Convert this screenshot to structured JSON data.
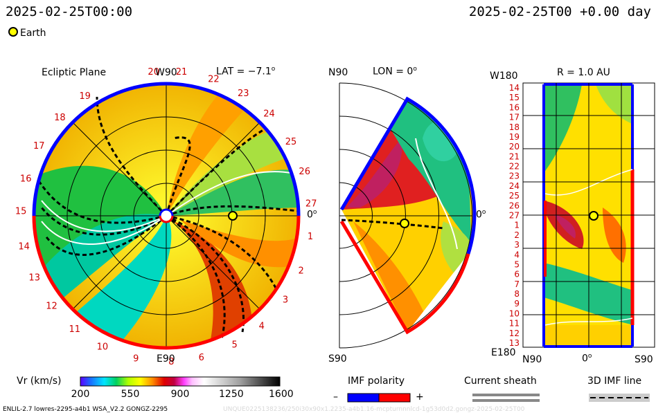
{
  "header": {
    "timestamp": "2025-02-25T00:00",
    "right_time": "2025-02-25T00 +0.00 day",
    "earth_legend": "Earth"
  },
  "panels": {
    "ecliptic": {
      "title": "Ecliptic Plane",
      "top_label": "W90",
      "bottom_label": "E90",
      "right_label": "0",
      "right_label_sup": "o",
      "lat_label": "LAT = −7.1",
      "lat_sup": "o",
      "carrington_numbers": [
        "20",
        "21",
        "22",
        "23",
        "24",
        "25",
        "26",
        "27",
        "1",
        "2",
        "3",
        "4",
        "5",
        "6",
        "8",
        "9",
        "10",
        "11",
        "12",
        "13",
        "14",
        "15",
        "16",
        "17",
        "18",
        "19"
      ]
    },
    "meridional": {
      "top_label": "N90",
      "bottom_label": "S90",
      "lon_label": "LON = 0",
      "lon_sup": "o",
      "right_label": "0",
      "right_label_sup": "o"
    },
    "radial": {
      "title": "R = 1.0 AU",
      "top_left": "W180",
      "bottom_left": "E180",
      "x_labels": [
        "N90",
        "0",
        "S90"
      ],
      "x_mid_sup": "o",
      "y_labels": [
        "14",
        "15",
        "16",
        "17",
        "18",
        "19",
        "20",
        "21",
        "22",
        "23",
        "24",
        "25",
        "26",
        "27",
        "1",
        "2",
        "3",
        "4",
        "5",
        "6",
        "7",
        "8",
        "9",
        "10",
        "11",
        "12",
        "13"
      ]
    }
  },
  "legend": {
    "vr_label": "Vr (km/s)",
    "vr_ticks": [
      "200",
      "550",
      "900",
      "1250",
      "1600"
    ],
    "imf_title": "IMF polarity",
    "imf_minus": "–",
    "imf_plus": "+",
    "sheath_title": "Current sheath",
    "imf3d_title": "3D IMF line"
  },
  "footer": {
    "left": "ENLIL-2.7 lowres-2295-a4b1 WSA_V2.2 GONGZ-2295",
    "right": "UNQUE0225138236/250i30x90x1.2235-a4b1.16-mcpturnnnlcd-1g53d0d2.gongz-2025-02-25T00"
  },
  "colors": {
    "polarity_minus": "#0000ff",
    "polarity_plus": "#ff0000",
    "earth_marker": "#ffff00",
    "carrington_label": "#cc0000"
  },
  "chart_data": {
    "type": "heatmap",
    "quantity": "Vr (km/s)",
    "colorbar_range": [
      200,
      1600
    ],
    "colorbar_ticks": [
      200,
      550,
      900,
      1250,
      1600
    ],
    "earth_position": {
      "r_au": 1.0,
      "lon_deg": 0,
      "lat_deg": -7.1
    }
  }
}
